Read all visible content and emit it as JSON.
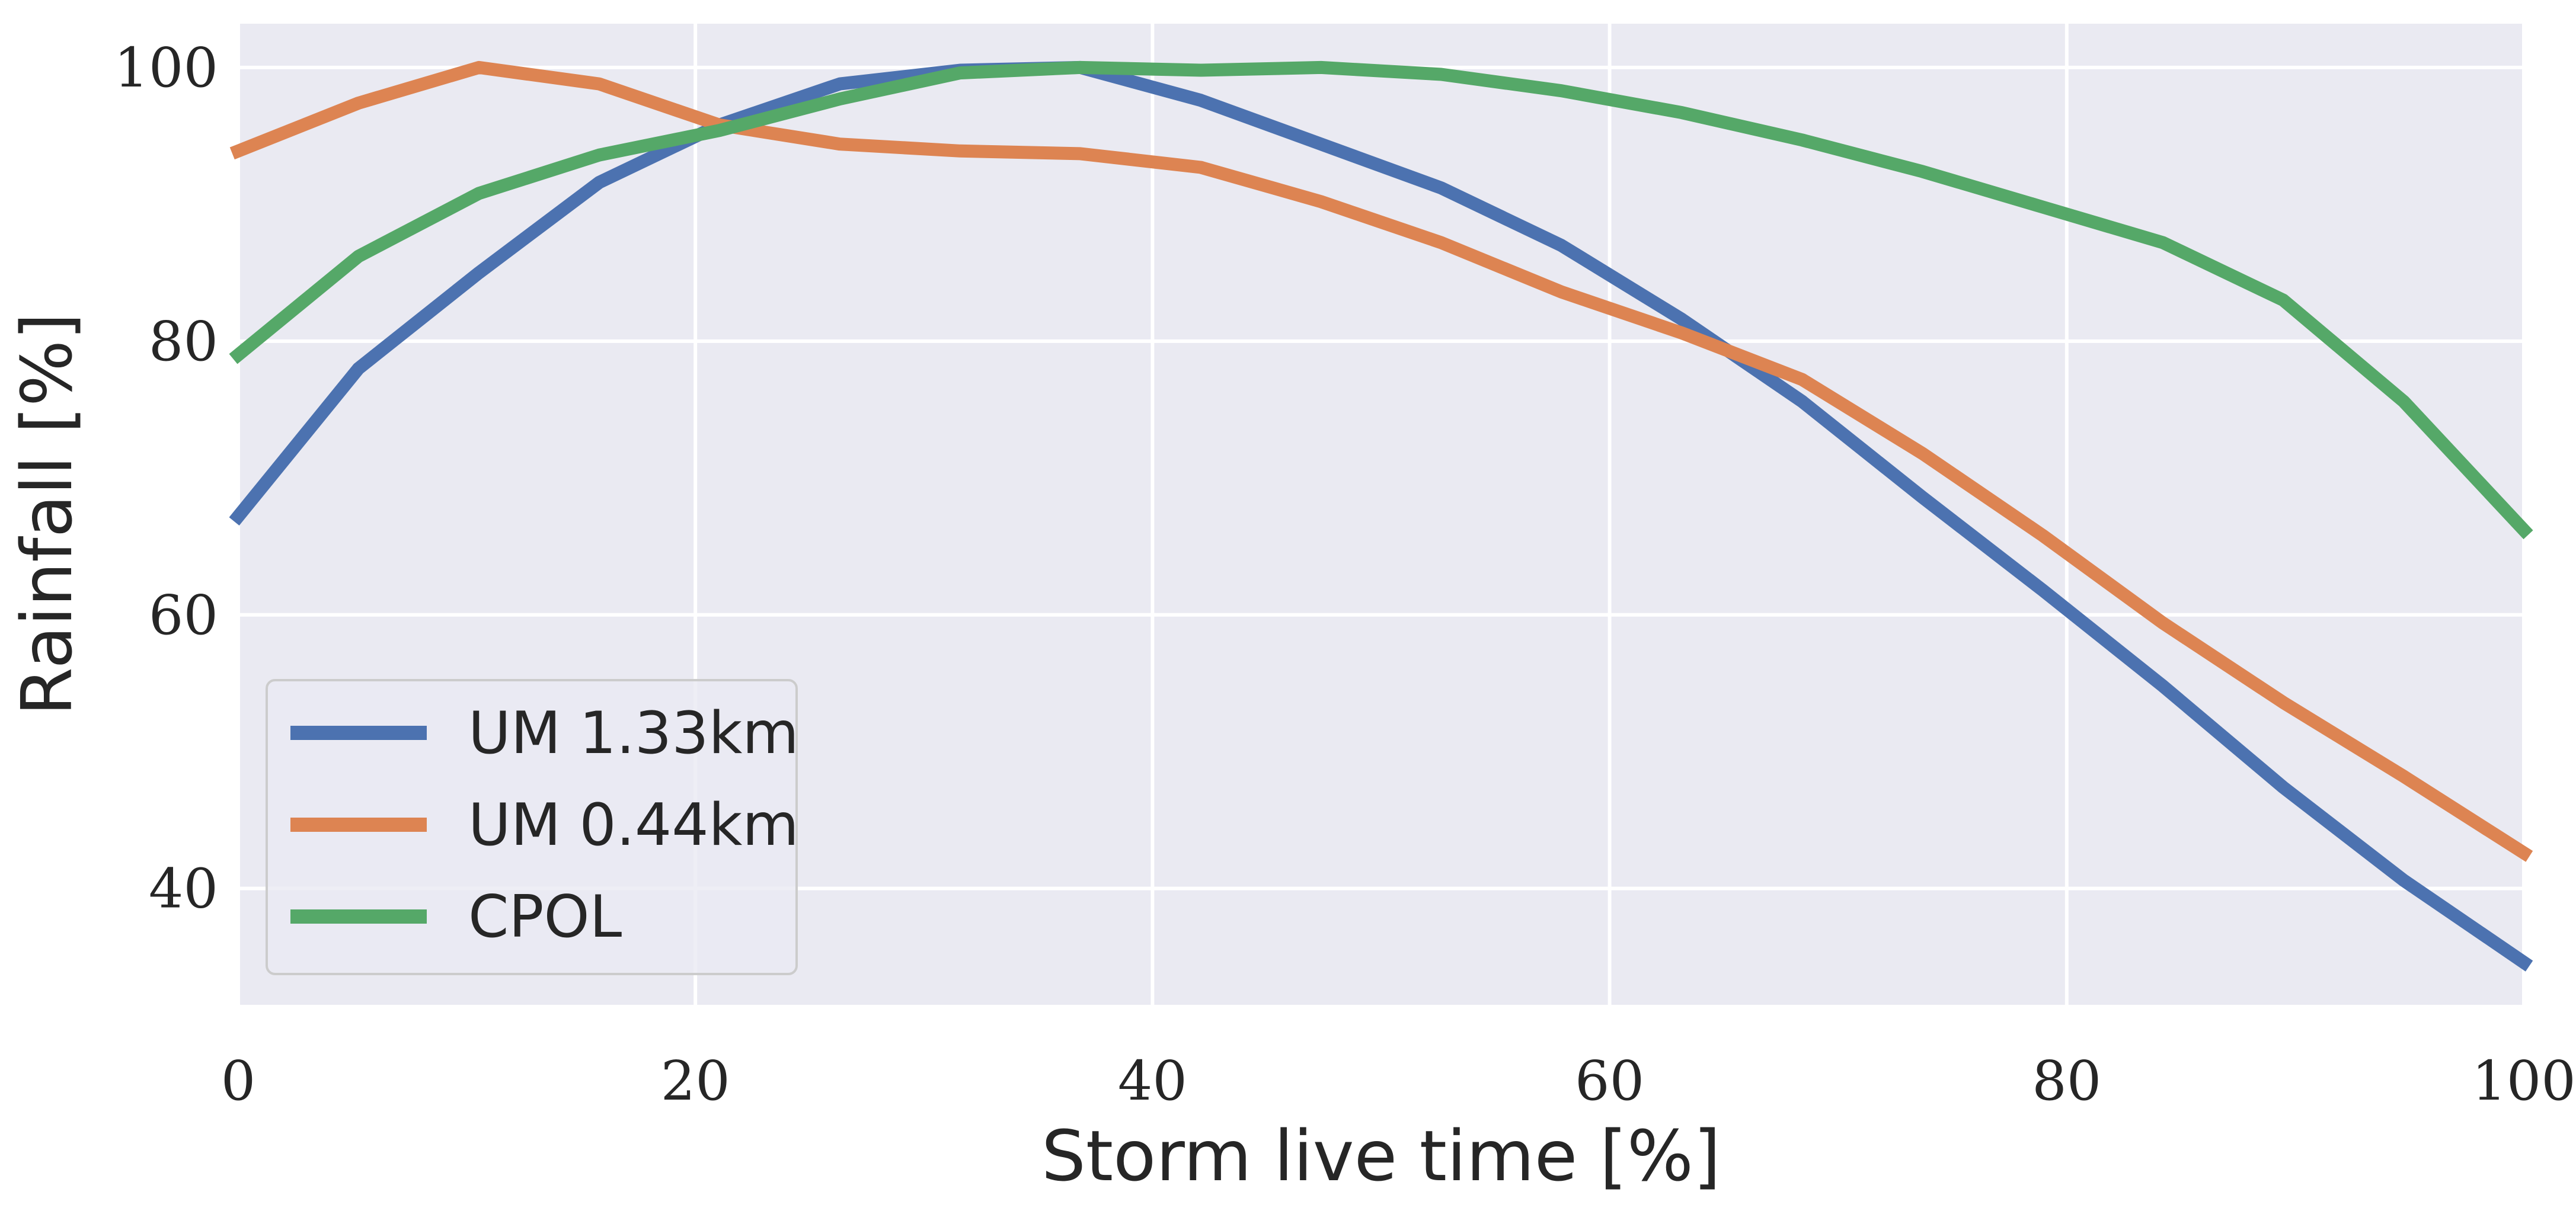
{
  "chart_data": {
    "type": "line",
    "title": "",
    "xlabel": "Storm live time [%]",
    "ylabel": "Rainfall [%]",
    "xlim": [
      0,
      100
    ],
    "ylim": [
      31.5,
      103.2
    ],
    "xticks": [
      0,
      20,
      40,
      60,
      80,
      100
    ],
    "xtick_labels": [
      "0",
      "20",
      "40",
      "60",
      "80",
      "100"
    ],
    "yticks": [
      40,
      60,
      80,
      100
    ],
    "ytick_labels": [
      "40",
      "60",
      "80",
      "100"
    ],
    "grid": true,
    "legend_position": "lower-left",
    "x": [
      0,
      5.26,
      10.53,
      15.79,
      21.05,
      26.32,
      31.58,
      36.84,
      42.11,
      47.37,
      52.63,
      57.89,
      63.16,
      68.42,
      73.68,
      78.95,
      84.21,
      89.47,
      94.74,
      100
    ],
    "series": [
      {
        "name": "UM 1.33km",
        "color": "#4c72b0",
        "values": [
          67.2,
          78.0,
          85.0,
          91.6,
          95.8,
          98.8,
          99.8,
          100.0,
          97.6,
          94.4,
          91.2,
          87.0,
          81.6,
          75.6,
          68.6,
          61.8,
          54.8,
          47.4,
          40.6,
          34.6
        ]
      },
      {
        "name": "UM 0.44km",
        "color": "#dd8452",
        "values": [
          93.9,
          97.4,
          100.0,
          98.8,
          95.8,
          94.4,
          93.9,
          93.7,
          92.7,
          90.2,
          87.2,
          83.6,
          80.6,
          77.2,
          71.8,
          65.8,
          59.4,
          53.6,
          48.2,
          42.6
        ]
      },
      {
        "name": "CPOL",
        "color": "#55a868",
        "values": [
          79.0,
          86.2,
          90.8,
          93.6,
          95.4,
          97.7,
          99.6,
          100.0,
          99.8,
          100.0,
          99.5,
          98.3,
          96.7,
          94.7,
          92.4,
          89.8,
          87.2,
          83.0,
          75.6,
          66.2
        ]
      }
    ]
  }
}
